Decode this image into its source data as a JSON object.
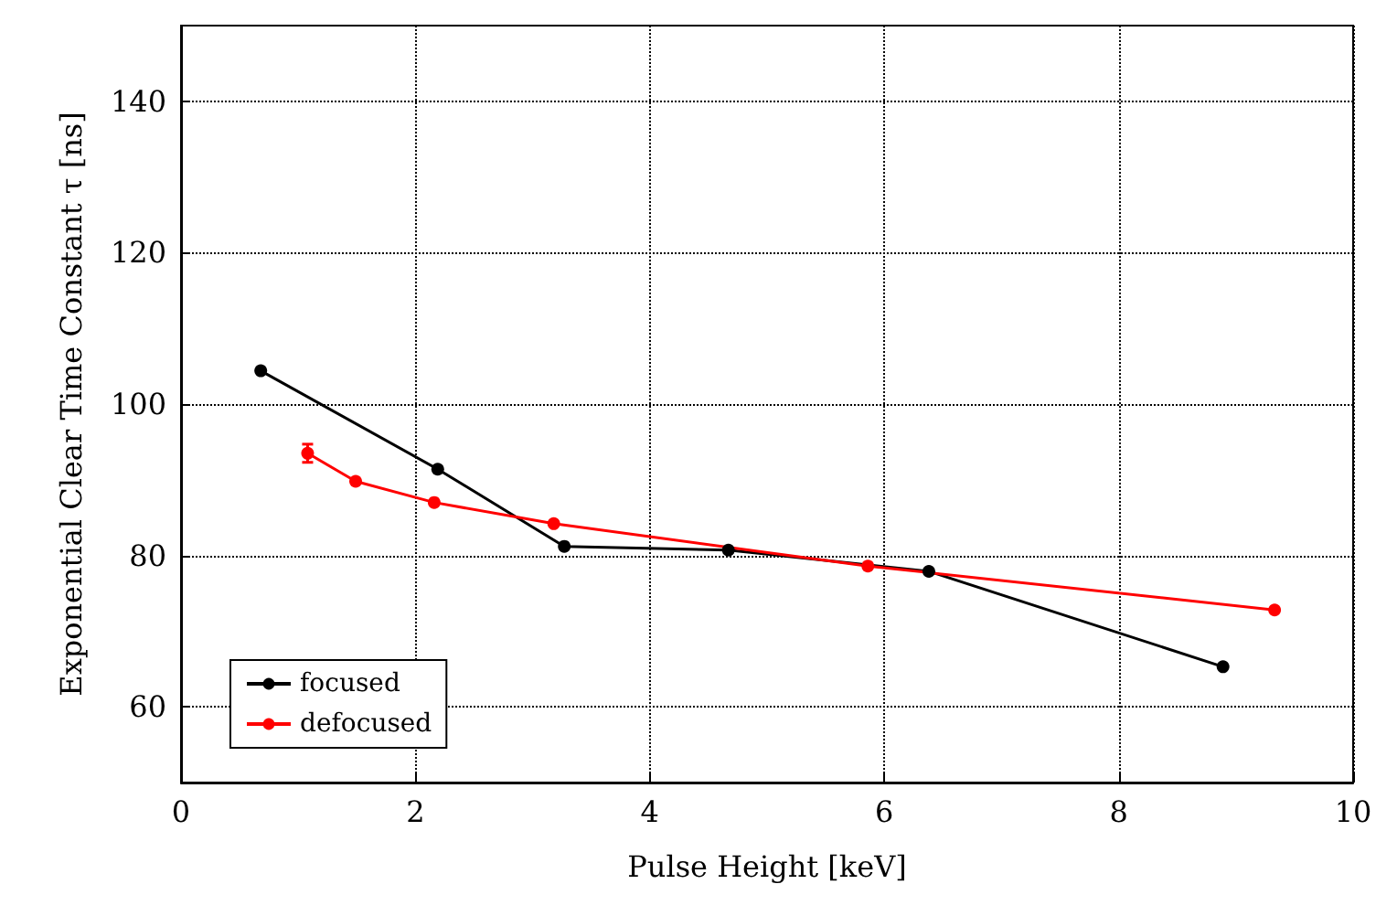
{
  "chart_data": {
    "type": "line",
    "xlabel": "Pulse Height [keV]",
    "ylabel": "Exponential Clear Time Constant τ [ns]",
    "xlim": [
      0,
      10
    ],
    "xticks": [
      0,
      2,
      4,
      6,
      8,
      10
    ],
    "ylim": [
      50,
      150
    ],
    "yticks": [
      60,
      80,
      100,
      120,
      140
    ],
    "grid": true,
    "legend": "bottom left",
    "marker": "circle",
    "line_style": "solid",
    "series": [
      {
        "name": "focused",
        "color": "#000000",
        "x": [
          0.68,
          2.19,
          3.27,
          4.67,
          6.38,
          8.89
        ],
        "values": [
          104.4,
          91.4,
          81.2,
          80.7,
          77.9,
          65.3
        ]
      },
      {
        "name": "defocused",
        "color": "#ff0000",
        "x": [
          1.08,
          1.49,
          2.16,
          3.18,
          5.86,
          9.33
        ],
        "values": [
          93.5,
          89.8,
          87.0,
          84.2,
          78.6,
          72.8
        ],
        "errors": [
          1.2,
          null,
          null,
          null,
          null,
          null
        ]
      }
    ]
  }
}
